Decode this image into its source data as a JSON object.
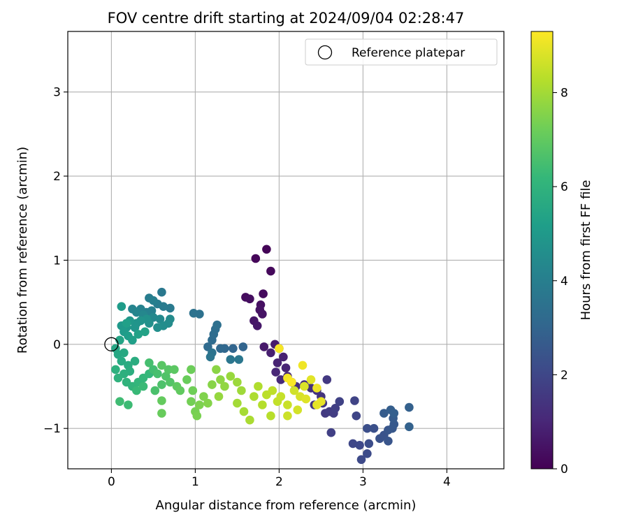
{
  "chart_data": {
    "type": "scatter",
    "title": "FOV centre drift starting at 2024/09/04 02:28:47",
    "xlabel": "Angular distance from reference (arcmin)",
    "ylabel": "Rotation from reference (arcmin)",
    "xlim": [
      -0.52,
      4.68
    ],
    "ylim": [
      -1.48,
      3.72
    ],
    "xticks": [
      0,
      1,
      2,
      3,
      4
    ],
    "yticks": [
      -1,
      0,
      1,
      2,
      3
    ],
    "grid": true,
    "legend": {
      "placement": "top-right",
      "entries": [
        {
          "label": "Reference platepar",
          "marker": "open-circle",
          "color": "#000000"
        }
      ]
    },
    "reference_point": {
      "x": 0,
      "y": 0
    },
    "colorbar": {
      "label": "Hours from first FF file",
      "colormap": "viridis",
      "range": [
        0,
        9.3
      ],
      "ticks": [
        0,
        2,
        4,
        6,
        8
      ]
    },
    "colormap_stops": [
      "#440154",
      "#482878",
      "#3e4989",
      "#31688e",
      "#26828e",
      "#1f9e89",
      "#35b779",
      "#6ece58",
      "#b5de2b",
      "#fde725"
    ],
    "points": [
      {
        "x": 1.85,
        "y": 1.13,
        "h": 0.1
      },
      {
        "x": 1.72,
        "y": 1.02,
        "h": 0.15
      },
      {
        "x": 1.9,
        "y": 0.87,
        "h": 0.2
      },
      {
        "x": 1.81,
        "y": 0.6,
        "h": 0.25
      },
      {
        "x": 1.6,
        "y": 0.56,
        "h": 0.3
      },
      {
        "x": 1.65,
        "y": 0.54,
        "h": 0.35
      },
      {
        "x": 1.78,
        "y": 0.47,
        "h": 0.4
      },
      {
        "x": 1.77,
        "y": 0.41,
        "h": 0.45
      },
      {
        "x": 1.8,
        "y": 0.36,
        "h": 0.5
      },
      {
        "x": 1.7,
        "y": 0.28,
        "h": 0.55
      },
      {
        "x": 1.74,
        "y": 0.22,
        "h": 0.6
      },
      {
        "x": 1.82,
        "y": -0.03,
        "h": 0.65
      },
      {
        "x": 1.95,
        "y": 0.0,
        "h": 0.7
      },
      {
        "x": 2.0,
        "y": -0.05,
        "h": 0.75
      },
      {
        "x": 1.9,
        "y": -0.1,
        "h": 0.8
      },
      {
        "x": 2.05,
        "y": -0.15,
        "h": 0.85
      },
      {
        "x": 1.98,
        "y": -0.22,
        "h": 0.9
      },
      {
        "x": 2.08,
        "y": -0.28,
        "h": 0.95
      },
      {
        "x": 1.96,
        "y": -0.33,
        "h": 1.0
      },
      {
        "x": 2.1,
        "y": -0.38,
        "h": 1.05
      },
      {
        "x": 2.02,
        "y": -0.42,
        "h": 1.1
      },
      {
        "x": 2.15,
        "y": -0.45,
        "h": 1.15
      },
      {
        "x": 2.2,
        "y": -0.5,
        "h": 1.2
      },
      {
        "x": 2.3,
        "y": -0.48,
        "h": 1.25
      },
      {
        "x": 2.38,
        "y": -0.52,
        "h": 1.3
      },
      {
        "x": 2.45,
        "y": -0.55,
        "h": 1.35
      },
      {
        "x": 2.5,
        "y": -0.62,
        "h": 1.4
      },
      {
        "x": 2.42,
        "y": -0.72,
        "h": 1.45
      },
      {
        "x": 2.52,
        "y": -0.7,
        "h": 1.5
      },
      {
        "x": 2.57,
        "y": -0.42,
        "h": 1.55
      },
      {
        "x": 2.55,
        "y": -0.82,
        "h": 1.6
      },
      {
        "x": 2.6,
        "y": -0.8,
        "h": 1.65
      },
      {
        "x": 2.65,
        "y": -0.82,
        "h": 1.7
      },
      {
        "x": 2.67,
        "y": -0.76,
        "h": 1.75
      },
      {
        "x": 2.62,
        "y": -1.05,
        "h": 1.8
      },
      {
        "x": 2.72,
        "y": -0.68,
        "h": 1.85
      },
      {
        "x": 2.9,
        "y": -0.67,
        "h": 1.9
      },
      {
        "x": 2.92,
        "y": -0.85,
        "h": 1.95
      },
      {
        "x": 2.88,
        "y": -1.18,
        "h": 2.0
      },
      {
        "x": 2.96,
        "y": -1.2,
        "h": 2.05
      },
      {
        "x": 2.98,
        "y": -1.37,
        "h": 2.1
      },
      {
        "x": 3.05,
        "y": -1.3,
        "h": 2.15
      },
      {
        "x": 3.07,
        "y": -1.18,
        "h": 2.2
      },
      {
        "x": 3.05,
        "y": -1.0,
        "h": 2.25
      },
      {
        "x": 3.13,
        "y": -1.0,
        "h": 2.3
      },
      {
        "x": 3.2,
        "y": -1.12,
        "h": 2.35
      },
      {
        "x": 3.25,
        "y": -1.08,
        "h": 2.4
      },
      {
        "x": 3.3,
        "y": -1.15,
        "h": 2.45
      },
      {
        "x": 3.3,
        "y": -1.02,
        "h": 2.5
      },
      {
        "x": 3.35,
        "y": -1.0,
        "h": 2.55
      },
      {
        "x": 3.37,
        "y": -0.95,
        "h": 2.6
      },
      {
        "x": 3.36,
        "y": -0.88,
        "h": 2.65
      },
      {
        "x": 3.25,
        "y": -0.82,
        "h": 2.7
      },
      {
        "x": 3.33,
        "y": -0.78,
        "h": 2.75
      },
      {
        "x": 3.37,
        "y": -0.82,
        "h": 2.8
      },
      {
        "x": 3.55,
        "y": -0.75,
        "h": 2.85
      },
      {
        "x": 3.55,
        "y": -0.98,
        "h": 2.9
      },
      {
        "x": 1.57,
        "y": -0.03,
        "h": 3.0
      },
      {
        "x": 1.45,
        "y": -0.05,
        "h": 3.05
      },
      {
        "x": 1.35,
        "y": -0.05,
        "h": 3.1
      },
      {
        "x": 1.3,
        "y": -0.05,
        "h": 3.15
      },
      {
        "x": 1.15,
        "y": -0.03,
        "h": 3.2
      },
      {
        "x": 1.2,
        "y": 0.05,
        "h": 3.25
      },
      {
        "x": 1.22,
        "y": 0.12,
        "h": 3.3
      },
      {
        "x": 1.24,
        "y": 0.18,
        "h": 3.35
      },
      {
        "x": 1.26,
        "y": 0.23,
        "h": 3.4
      },
      {
        "x": 1.05,
        "y": 0.36,
        "h": 3.45
      },
      {
        "x": 0.98,
        "y": 0.37,
        "h": 3.5
      },
      {
        "x": 1.2,
        "y": -0.1,
        "h": 3.55
      },
      {
        "x": 1.18,
        "y": -0.15,
        "h": 3.6
      },
      {
        "x": 1.42,
        "y": -0.18,
        "h": 3.65
      },
      {
        "x": 1.52,
        "y": -0.18,
        "h": 3.7
      },
      {
        "x": 0.6,
        "y": 0.62,
        "h": 3.75
      },
      {
        "x": 0.7,
        "y": 0.43,
        "h": 3.8
      },
      {
        "x": 0.62,
        "y": 0.45,
        "h": 3.85
      },
      {
        "x": 0.55,
        "y": 0.48,
        "h": 3.9
      },
      {
        "x": 0.45,
        "y": 0.55,
        "h": 3.95
      },
      {
        "x": 0.5,
        "y": 0.52,
        "h": 4.0
      },
      {
        "x": 0.48,
        "y": 0.4,
        "h": 4.05
      },
      {
        "x": 0.42,
        "y": 0.38,
        "h": 4.1
      },
      {
        "x": 0.35,
        "y": 0.42,
        "h": 4.15
      },
      {
        "x": 0.25,
        "y": 0.42,
        "h": 4.2
      },
      {
        "x": 0.3,
        "y": 0.38,
        "h": 4.25
      },
      {
        "x": 0.38,
        "y": 0.35,
        "h": 4.3
      },
      {
        "x": 0.5,
        "y": 0.32,
        "h": 4.35
      },
      {
        "x": 0.58,
        "y": 0.3,
        "h": 4.4
      },
      {
        "x": 0.7,
        "y": 0.3,
        "h": 4.45
      },
      {
        "x": 0.68,
        "y": 0.25,
        "h": 4.5
      },
      {
        "x": 0.62,
        "y": 0.22,
        "h": 4.55
      },
      {
        "x": 0.55,
        "y": 0.2,
        "h": 4.6
      },
      {
        "x": 0.45,
        "y": 0.25,
        "h": 4.65
      },
      {
        "x": 0.42,
        "y": 0.3,
        "h": 4.7
      },
      {
        "x": 0.35,
        "y": 0.28,
        "h": 4.75
      },
      {
        "x": 0.3,
        "y": 0.25,
        "h": 4.8
      },
      {
        "x": 0.28,
        "y": 0.2,
        "h": 4.85
      },
      {
        "x": 0.22,
        "y": 0.28,
        "h": 4.9
      },
      {
        "x": 0.18,
        "y": 0.2,
        "h": 4.95
      },
      {
        "x": 0.12,
        "y": 0.22,
        "h": 5.0
      },
      {
        "x": 0.15,
        "y": 0.15,
        "h": 5.05
      },
      {
        "x": 0.12,
        "y": 0.45,
        "h": 5.1
      },
      {
        "x": 0.2,
        "y": 0.1,
        "h": 5.15
      },
      {
        "x": 0.25,
        "y": 0.05,
        "h": 5.2
      },
      {
        "x": 0.18,
        "y": 0.25,
        "h": 5.25
      },
      {
        "x": 0.32,
        "y": 0.12,
        "h": 5.3
      },
      {
        "x": 0.4,
        "y": 0.15,
        "h": 5.35
      },
      {
        "x": 0.1,
        "y": 0.05,
        "h": 5.4
      },
      {
        "x": 0.05,
        "y": -0.05,
        "h": 5.5
      },
      {
        "x": 0.08,
        "y": -0.12,
        "h": 5.55
      },
      {
        "x": 0.15,
        "y": -0.1,
        "h": 5.6
      },
      {
        "x": 0.12,
        "y": -0.2,
        "h": 5.65
      },
      {
        "x": 0.2,
        "y": -0.25,
        "h": 5.7
      },
      {
        "x": 0.28,
        "y": -0.2,
        "h": 5.75
      },
      {
        "x": 0.22,
        "y": -0.32,
        "h": 5.8
      },
      {
        "x": 0.15,
        "y": -0.35,
        "h": 5.85
      },
      {
        "x": 0.05,
        "y": -0.3,
        "h": 5.9
      },
      {
        "x": 0.08,
        "y": -0.4,
        "h": 5.95
      },
      {
        "x": 0.18,
        "y": -0.45,
        "h": 6.0
      },
      {
        "x": 0.25,
        "y": -0.5,
        "h": 6.05
      },
      {
        "x": 0.32,
        "y": -0.45,
        "h": 6.1
      },
      {
        "x": 0.38,
        "y": -0.4,
        "h": 6.15
      },
      {
        "x": 0.45,
        "y": -0.35,
        "h": 6.2
      },
      {
        "x": 0.3,
        "y": -0.55,
        "h": 6.25
      },
      {
        "x": 0.38,
        "y": -0.5,
        "h": 6.3
      },
      {
        "x": 0.2,
        "y": -0.72,
        "h": 6.35
      },
      {
        "x": 0.1,
        "y": -0.68,
        "h": 6.4
      },
      {
        "x": 0.5,
        "y": -0.3,
        "h": 6.45
      },
      {
        "x": 0.45,
        "y": -0.22,
        "h": 6.5
      },
      {
        "x": 0.55,
        "y": -0.35,
        "h": 6.55
      },
      {
        "x": 0.52,
        "y": -0.55,
        "h": 6.6
      },
      {
        "x": 0.6,
        "y": -0.48,
        "h": 6.65
      },
      {
        "x": 0.65,
        "y": -0.38,
        "h": 6.7
      },
      {
        "x": 0.7,
        "y": -0.45,
        "h": 6.75
      },
      {
        "x": 0.68,
        "y": -0.3,
        "h": 6.8
      },
      {
        "x": 0.6,
        "y": -0.25,
        "h": 6.85
      },
      {
        "x": 0.75,
        "y": -0.3,
        "h": 6.9
      },
      {
        "x": 0.78,
        "y": -0.5,
        "h": 6.95
      },
      {
        "x": 0.82,
        "y": -0.55,
        "h": 7.0
      },
      {
        "x": 0.6,
        "y": -0.67,
        "h": 7.05
      },
      {
        "x": 0.6,
        "y": -0.82,
        "h": 7.1
      },
      {
        "x": 0.9,
        "y": -0.42,
        "h": 7.15
      },
      {
        "x": 0.95,
        "y": -0.3,
        "h": 7.2
      },
      {
        "x": 0.97,
        "y": -0.55,
        "h": 7.25
      },
      {
        "x": 0.95,
        "y": -0.68,
        "h": 7.3
      },
      {
        "x": 1.0,
        "y": -0.8,
        "h": 7.35
      },
      {
        "x": 1.02,
        "y": -0.85,
        "h": 7.4
      },
      {
        "x": 1.05,
        "y": -0.72,
        "h": 7.45
      },
      {
        "x": 1.1,
        "y": -0.62,
        "h": 7.5
      },
      {
        "x": 1.15,
        "y": -0.7,
        "h": 7.55
      },
      {
        "x": 1.2,
        "y": -0.48,
        "h": 7.6
      },
      {
        "x": 1.25,
        "y": -0.3,
        "h": 7.65
      },
      {
        "x": 1.3,
        "y": -0.42,
        "h": 7.7
      },
      {
        "x": 1.35,
        "y": -0.5,
        "h": 7.75
      },
      {
        "x": 1.28,
        "y": -0.62,
        "h": 7.8
      },
      {
        "x": 1.42,
        "y": -0.38,
        "h": 7.85
      },
      {
        "x": 1.5,
        "y": -0.45,
        "h": 7.9
      },
      {
        "x": 1.55,
        "y": -0.55,
        "h": 7.95
      },
      {
        "x": 1.5,
        "y": -0.7,
        "h": 8.0
      },
      {
        "x": 1.58,
        "y": -0.8,
        "h": 8.05
      },
      {
        "x": 1.65,
        "y": -0.9,
        "h": 8.1
      },
      {
        "x": 1.7,
        "y": -0.62,
        "h": 8.15
      },
      {
        "x": 1.75,
        "y": -0.5,
        "h": 8.2
      },
      {
        "x": 1.8,
        "y": -0.72,
        "h": 8.25
      },
      {
        "x": 1.9,
        "y": -0.85,
        "h": 8.3
      },
      {
        "x": 1.85,
        "y": -0.6,
        "h": 8.35
      },
      {
        "x": 1.92,
        "y": -0.55,
        "h": 8.4
      },
      {
        "x": 1.98,
        "y": -0.68,
        "h": 8.45
      },
      {
        "x": 2.02,
        "y": -0.62,
        "h": 8.5
      },
      {
        "x": 2.1,
        "y": -0.72,
        "h": 8.55
      },
      {
        "x": 2.1,
        "y": -0.85,
        "h": 8.6
      },
      {
        "x": 2.18,
        "y": -0.55,
        "h": 8.65
      },
      {
        "x": 2.22,
        "y": -0.78,
        "h": 8.7
      },
      {
        "x": 2.25,
        "y": -0.62,
        "h": 8.75
      },
      {
        "x": 2.3,
        "y": -0.5,
        "h": 8.8
      },
      {
        "x": 2.32,
        "y": -0.65,
        "h": 8.85
      },
      {
        "x": 2.38,
        "y": -0.42,
        "h": 8.9
      },
      {
        "x": 2.45,
        "y": -0.72,
        "h": 8.95
      },
      {
        "x": 2.5,
        "y": -0.68,
        "h": 9.0
      },
      {
        "x": 2.45,
        "y": -0.52,
        "h": 9.05
      },
      {
        "x": 2.28,
        "y": -0.25,
        "h": 9.1
      },
      {
        "x": 2.1,
        "y": -0.4,
        "h": 9.15
      },
      {
        "x": 2.0,
        "y": -0.05,
        "h": 9.2
      },
      {
        "x": 2.15,
        "y": -0.45,
        "h": 9.25
      }
    ]
  }
}
